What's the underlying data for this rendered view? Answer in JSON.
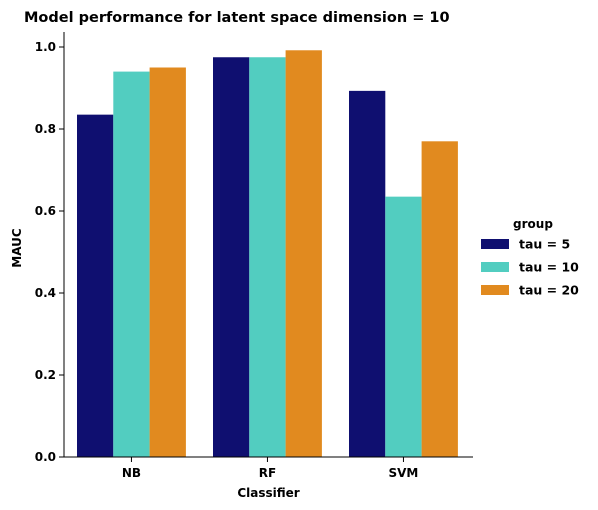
{
  "chart_data": {
    "type": "bar",
    "title": "Model performance for latent space dimension = 10",
    "xlabel": "Classifier",
    "ylabel": "MAUC",
    "categories": [
      "NB",
      "RF",
      "SVM"
    ],
    "series": [
      {
        "name": "tau = 5",
        "values": [
          0.835,
          0.975,
          0.893
        ],
        "color": "#0f0f70"
      },
      {
        "name": "tau = 10",
        "values": [
          0.94,
          0.975,
          0.635
        ],
        "color": "#52cdc0"
      },
      {
        "name": "tau = 20",
        "values": [
          0.95,
          0.992,
          0.77
        ],
        "color": "#e18a1f"
      }
    ],
    "ylim": [
      0,
      1.0
    ],
    "yticks": [
      0.0,
      0.2,
      0.4,
      0.6,
      0.8,
      1.0
    ],
    "ytick_labels": [
      "0.0",
      "0.2",
      "0.4",
      "0.6",
      "0.8",
      "1.0"
    ],
    "grid": false,
    "legend": {
      "title": "group",
      "placement": "right"
    }
  }
}
